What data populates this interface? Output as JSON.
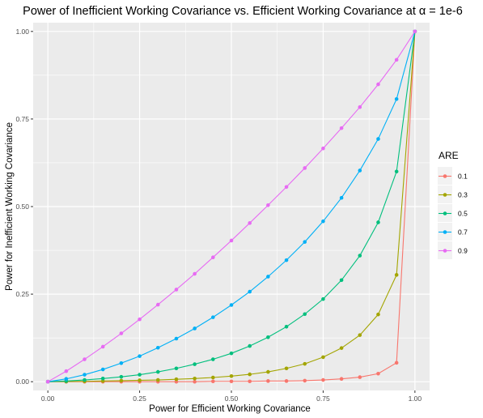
{
  "chart_data": {
    "type": "line",
    "title": "Power of Inefficient Working Covariance vs. Efficient Working Covariance at α = 1e-6",
    "xlabel": "Power for Efficient Working Covariance",
    "ylabel": "Power for Inefficient Working Covariance",
    "xlim": [
      -0.04,
      1.04
    ],
    "ylim": [
      -0.025,
      1.025
    ],
    "xticks": [
      0,
      0.25,
      0.5,
      0.75,
      1
    ],
    "xtick_labels": [
      "0.00",
      "0.25",
      "0.50",
      "0.75",
      "1.00"
    ],
    "yticks": [
      0,
      0.25,
      0.5,
      0.75,
      1
    ],
    "ytick_labels": [
      "0.00",
      "0.25",
      "0.50",
      "0.75",
      "1.00"
    ],
    "grid": true,
    "legend": {
      "title": "ARE",
      "position": "right"
    },
    "x": [
      0,
      0.05,
      0.1,
      0.15,
      0.2,
      0.25,
      0.3,
      0.35,
      0.4,
      0.45,
      0.5,
      0.55,
      0.6,
      0.65,
      0.7,
      0.75,
      0.8,
      0.85,
      0.9,
      0.95,
      1
    ],
    "series": [
      {
        "name": "0.1",
        "color": "#F8766D",
        "values": [
          0,
          0,
          0,
          0,
          0,
          0,
          0,
          0,
          0,
          0.001,
          0.001,
          0.001,
          0.002,
          0.002,
          0.003,
          0.005,
          0.008,
          0.013,
          0.023,
          0.054,
          1
        ]
      },
      {
        "name": "0.3",
        "color": "#A3A500",
        "values": [
          0,
          0.0005,
          0.001,
          0.002,
          0.003,
          0.004,
          0.005,
          0.007,
          0.009,
          0.012,
          0.016,
          0.021,
          0.028,
          0.038,
          0.051,
          0.07,
          0.096,
          0.133,
          0.192,
          0.305,
          1
        ]
      },
      {
        "name": "0.5",
        "color": "#00BF7D",
        "values": [
          0,
          0.002,
          0.005,
          0.009,
          0.014,
          0.02,
          0.028,
          0.038,
          0.05,
          0.064,
          0.081,
          0.102,
          0.127,
          0.157,
          0.193,
          0.236,
          0.29,
          0.36,
          0.455,
          0.6,
          1
        ]
      },
      {
        "name": "0.7",
        "color": "#00B0F6",
        "values": [
          0,
          0.008,
          0.02,
          0.035,
          0.053,
          0.073,
          0.097,
          0.123,
          0.152,
          0.184,
          0.219,
          0.257,
          0.3,
          0.347,
          0.399,
          0.458,
          0.525,
          0.603,
          0.693,
          0.807,
          1
        ]
      },
      {
        "name": "0.9",
        "color": "#E76BF3",
        "values": [
          0,
          0.03,
          0.064,
          0.1,
          0.138,
          0.178,
          0.22,
          0.263,
          0.308,
          0.355,
          0.403,
          0.453,
          0.504,
          0.556,
          0.61,
          0.666,
          0.724,
          0.784,
          0.849,
          0.919,
          1
        ]
      }
    ]
  }
}
